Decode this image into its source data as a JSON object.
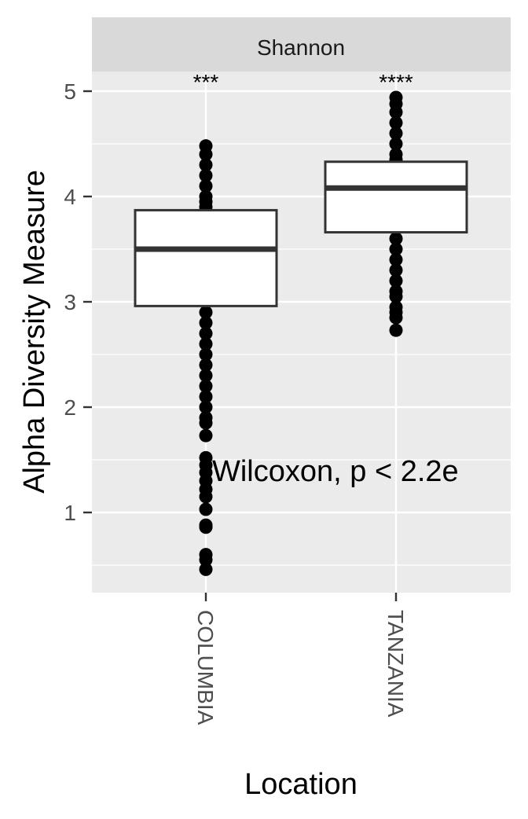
{
  "chart_data": {
    "type": "box",
    "facet_label": "Shannon",
    "xlabel": "Location",
    "ylabel": "Alpha Diversity Measure",
    "categories": [
      "COLUMBIA",
      "TANZANIA"
    ],
    "ylim": [
      0.2,
      5.2
    ],
    "yticks": [
      1,
      2,
      3,
      4,
      5
    ],
    "grid": true,
    "boxes": [
      {
        "category": "COLUMBIA",
        "q1": 2.96,
        "median": 3.5,
        "q3": 3.87,
        "whisker_low": 1.73,
        "whisker_high": 4.48,
        "points": [
          4.48,
          4.4,
          4.3,
          4.2,
          4.1,
          4.0,
          3.95,
          3.9,
          3.8,
          3.7,
          3.6,
          3.5,
          3.4,
          3.3,
          3.2,
          3.1,
          3.0,
          2.9,
          2.8,
          2.7,
          2.6,
          2.5,
          2.4,
          2.3,
          2.2,
          2.1,
          2.0,
          1.9,
          1.85,
          1.73,
          1.52,
          1.45,
          1.38,
          1.3,
          1.22,
          1.15,
          1.03,
          0.88,
          0.86,
          0.6,
          0.55,
          0.46
        ]
      },
      {
        "category": "TANZANIA",
        "q1": 3.66,
        "median": 4.08,
        "q3": 4.33,
        "whisker_low": 2.73,
        "whisker_high": 4.94,
        "points": [
          4.94,
          4.88,
          4.8,
          4.7,
          4.6,
          4.5,
          4.4,
          4.35,
          4.3,
          4.2,
          4.1,
          4.0,
          3.9,
          3.8,
          3.7,
          3.6,
          3.5,
          3.4,
          3.3,
          3.2,
          3.1,
          3.05,
          2.95,
          2.9,
          2.85,
          2.73
        ]
      }
    ],
    "significance": [
      {
        "category": "COLUMBIA",
        "label": "***"
      },
      {
        "category": "TANZANIA",
        "label": "****"
      }
    ],
    "annotation": "Wilcoxon, p < 2.2e"
  }
}
